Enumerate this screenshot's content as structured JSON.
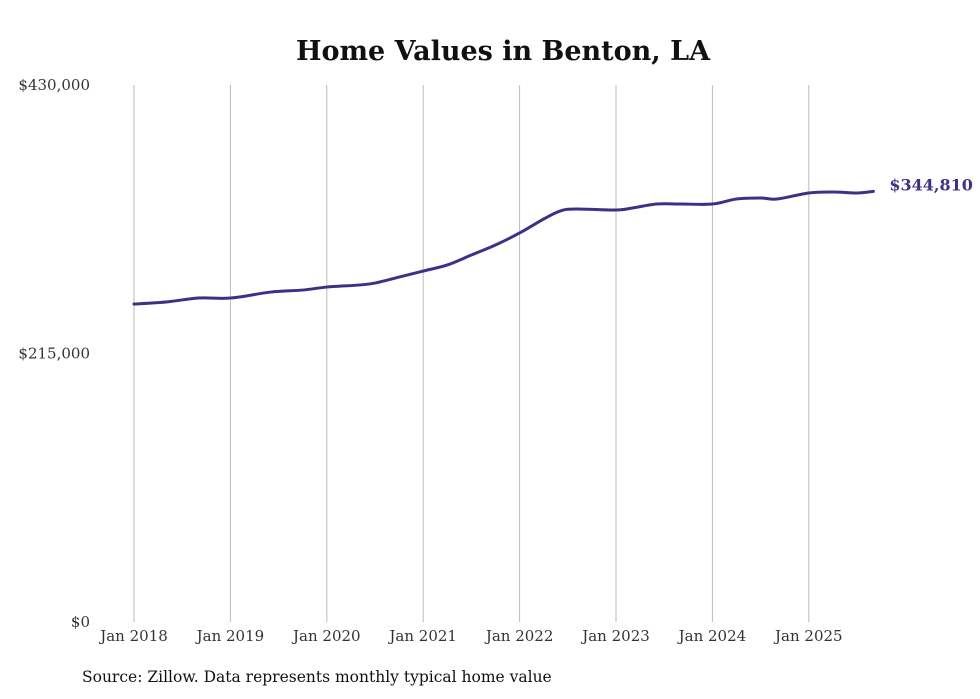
{
  "chart_data": {
    "type": "line",
    "title": "Home Values in Benton, LA",
    "xlabel": "",
    "ylabel": "",
    "ylim": [
      0,
      430000
    ],
    "y_ticks": [
      0,
      215000,
      430000
    ],
    "y_tick_labels": [
      "$0",
      "$215,000",
      "$430,000"
    ],
    "x_tick_labels": [
      "Jan 2018",
      "Jan 2019",
      "Jan 2020",
      "Jan 2021",
      "Jan 2022",
      "Jan 2023",
      "Jan 2024",
      "Jan 2025"
    ],
    "x_ticks": [
      2018,
      2019,
      2020,
      2021,
      2022,
      2023,
      2024,
      2025
    ],
    "xlim": [
      2018,
      2025.75
    ],
    "grid": "vertical",
    "color": "#3b3288",
    "series": [
      {
        "name": "Typical home value",
        "x": [
          2018.0,
          2018.33,
          2018.67,
          2019.0,
          2019.42,
          2019.75,
          2020.0,
          2020.33,
          2020.5,
          2020.75,
          2021.0,
          2021.25,
          2021.5,
          2021.75,
          2022.0,
          2022.25,
          2022.42,
          2022.58,
          2023.0,
          2023.17,
          2023.42,
          2023.67,
          2024.0,
          2024.25,
          2024.5,
          2024.67,
          2025.0,
          2025.25,
          2025.5,
          2025.67
        ],
        "values": [
          254600,
          256200,
          259400,
          259400,
          264200,
          265800,
          268200,
          269800,
          271400,
          276200,
          281000,
          285900,
          293900,
          301900,
          311500,
          322700,
          329100,
          330700,
          329900,
          331500,
          334700,
          334700,
          334700,
          338700,
          339500,
          338700,
          343500,
          344300,
          343500,
          344810
        ]
      }
    ],
    "end_label": "$344,810"
  },
  "source": "Source: Zillow. Data represents monthly typical home value"
}
